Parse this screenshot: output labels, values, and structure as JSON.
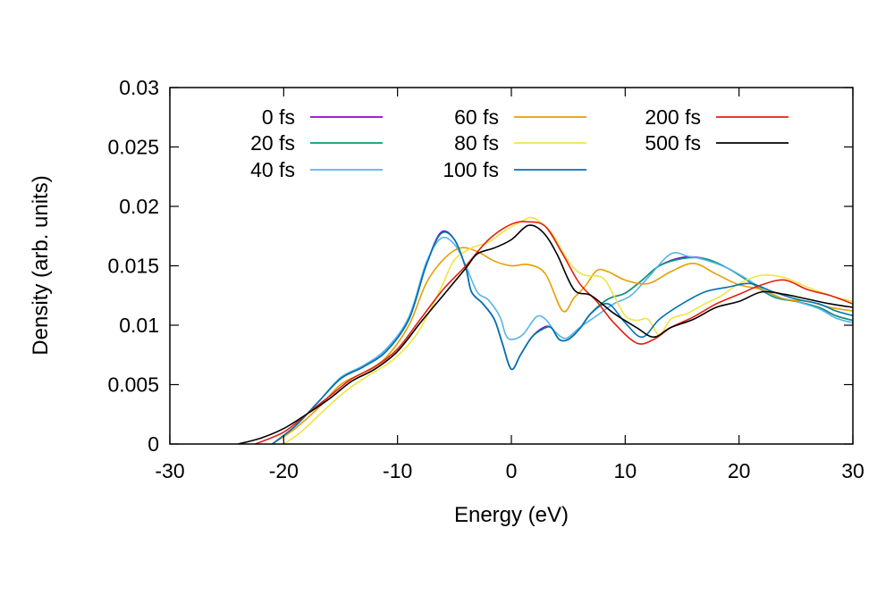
{
  "chart_data": {
    "type": "line",
    "title": "",
    "xlabel": "Energy (eV)",
    "ylabel": "Density (arb. units)",
    "xlim": [
      -30,
      30
    ],
    "ylim": [
      0,
      0.03
    ],
    "x_ticks": [
      -30,
      -20,
      -10,
      0,
      10,
      20,
      30
    ],
    "x_tick_labels": [
      "-30",
      "-20",
      "-10",
      "0",
      "10",
      "20",
      "30"
    ],
    "y_ticks": [
      0,
      0.005,
      0.01,
      0.015,
      0.02,
      0.025,
      0.03
    ],
    "y_tick_labels": [
      "0",
      "0.005",
      "0.01",
      "0.015",
      "0.02",
      "0.025",
      "0.03"
    ],
    "grid": false,
    "legend_position": "top",
    "series": [
      {
        "name": "0 fs",
        "color": "#9400d3",
        "points": [
          [
            -21,
            0
          ],
          [
            -19,
            0.0015
          ],
          [
            -17,
            0.0035
          ],
          [
            -15,
            0.0055
          ],
          [
            -13,
            0.0065
          ],
          [
            -11,
            0.0078
          ],
          [
            -9,
            0.0105
          ],
          [
            -7.5,
            0.015
          ],
          [
            -6.2,
            0.0178
          ],
          [
            -5,
            0.0172
          ],
          [
            -4,
            0.0148
          ],
          [
            -3.5,
            0.0128
          ],
          [
            -2.5,
            0.0118
          ],
          [
            -1.5,
            0.0105
          ],
          [
            -0.8,
            0.0085
          ],
          [
            0,
            0.0063
          ],
          [
            0.8,
            0.0075
          ],
          [
            1.8,
            0.009
          ],
          [
            2.8,
            0.0098
          ],
          [
            3.5,
            0.0098
          ],
          [
            4.2,
            0.0088
          ],
          [
            5,
            0.0088
          ],
          [
            6,
            0.0097
          ],
          [
            7,
            0.011
          ],
          [
            8.5,
            0.0122
          ],
          [
            10,
            0.0127
          ],
          [
            11.5,
            0.0138
          ],
          [
            13,
            0.015
          ],
          [
            15,
            0.0157
          ],
          [
            17,
            0.0156
          ],
          [
            19,
            0.0148
          ],
          [
            21,
            0.0136
          ],
          [
            23,
            0.0124
          ],
          [
            25,
            0.012
          ],
          [
            27,
            0.0115
          ],
          [
            28.5,
            0.0108
          ],
          [
            30,
            0.0104
          ]
        ]
      },
      {
        "name": "20 fs",
        "color": "#009e73",
        "points": [
          [
            -21,
            0
          ],
          [
            -19,
            0.0015
          ],
          [
            -17,
            0.0035
          ],
          [
            -15,
            0.0055
          ],
          [
            -13,
            0.0065
          ],
          [
            -11,
            0.0078
          ],
          [
            -9,
            0.0105
          ],
          [
            -7.5,
            0.015
          ],
          [
            -6.2,
            0.0177
          ],
          [
            -5,
            0.0172
          ],
          [
            -4,
            0.0148
          ],
          [
            -3.5,
            0.0128
          ],
          [
            -2.5,
            0.0118
          ],
          [
            -1.5,
            0.0105
          ],
          [
            -0.8,
            0.0085
          ],
          [
            0,
            0.0063
          ],
          [
            0.8,
            0.0075
          ],
          [
            1.8,
            0.009
          ],
          [
            2.8,
            0.0097
          ],
          [
            3.5,
            0.0098
          ],
          [
            4.2,
            0.0088
          ],
          [
            5,
            0.0088
          ],
          [
            6,
            0.0097
          ],
          [
            7,
            0.011
          ],
          [
            8.5,
            0.0122
          ],
          [
            10,
            0.0127
          ],
          [
            11.5,
            0.0138
          ],
          [
            13,
            0.015
          ],
          [
            15,
            0.0156
          ],
          [
            17,
            0.0156
          ],
          [
            19,
            0.0148
          ],
          [
            21,
            0.0136
          ],
          [
            23,
            0.0124
          ],
          [
            25,
            0.012
          ],
          [
            27,
            0.0115
          ],
          [
            28.5,
            0.0108
          ],
          [
            30,
            0.0104
          ]
        ]
      },
      {
        "name": "40 fs",
        "color": "#56b4e9",
        "points": [
          [
            -21,
            0
          ],
          [
            -19,
            0.0015
          ],
          [
            -17,
            0.0035
          ],
          [
            -15,
            0.0056
          ],
          [
            -13,
            0.0066
          ],
          [
            -11,
            0.008
          ],
          [
            -9,
            0.0107
          ],
          [
            -7.5,
            0.0152
          ],
          [
            -6.2,
            0.0173
          ],
          [
            -5,
            0.0168
          ],
          [
            -4,
            0.015
          ],
          [
            -3,
            0.0128
          ],
          [
            -2,
            0.0121
          ],
          [
            -1,
            0.0107
          ],
          [
            -0.5,
            0.0092
          ],
          [
            0,
            0.0088
          ],
          [
            1,
            0.0092
          ],
          [
            2.2,
            0.0107
          ],
          [
            3,
            0.0105
          ],
          [
            3.8,
            0.0095
          ],
          [
            4.8,
            0.0089
          ],
          [
            6,
            0.0098
          ],
          [
            7.5,
            0.0108
          ],
          [
            9,
            0.0118
          ],
          [
            10.5,
            0.0125
          ],
          [
            12,
            0.014
          ],
          [
            14,
            0.016
          ],
          [
            15.5,
            0.0158
          ],
          [
            17,
            0.0155
          ],
          [
            19,
            0.0148
          ],
          [
            21,
            0.0137
          ],
          [
            23,
            0.0125
          ],
          [
            25,
            0.012
          ],
          [
            27,
            0.0114
          ],
          [
            28.5,
            0.0106
          ],
          [
            30,
            0.0102
          ]
        ]
      },
      {
        "name": "60 fs",
        "color": "#e69f00",
        "points": [
          [
            -21,
            0
          ],
          [
            -19,
            0.0013
          ],
          [
            -17,
            0.003
          ],
          [
            -15,
            0.005
          ],
          [
            -13,
            0.006
          ],
          [
            -11,
            0.0073
          ],
          [
            -9,
            0.01
          ],
          [
            -7.5,
            0.0135
          ],
          [
            -6,
            0.0155
          ],
          [
            -4.5,
            0.0165
          ],
          [
            -3,
            0.0162
          ],
          [
            -1.5,
            0.0154
          ],
          [
            0,
            0.015
          ],
          [
            1.5,
            0.0151
          ],
          [
            3,
            0.0143
          ],
          [
            4.5,
            0.0112
          ],
          [
            5.5,
            0.0123
          ],
          [
            6.5,
            0.0133
          ],
          [
            7.5,
            0.0146
          ],
          [
            8.5,
            0.0145
          ],
          [
            10,
            0.0138
          ],
          [
            12,
            0.0135
          ],
          [
            14,
            0.0145
          ],
          [
            16,
            0.0152
          ],
          [
            18,
            0.0143
          ],
          [
            20,
            0.0134
          ],
          [
            22,
            0.013
          ],
          [
            24,
            0.0122
          ],
          [
            26,
            0.012
          ],
          [
            28,
            0.0115
          ],
          [
            30,
            0.0112
          ]
        ]
      },
      {
        "name": "80 fs",
        "color": "#f0e442",
        "points": [
          [
            -20,
            0
          ],
          [
            -18.5,
            0.001
          ],
          [
            -16.5,
            0.0028
          ],
          [
            -14.5,
            0.0045
          ],
          [
            -12.5,
            0.0058
          ],
          [
            -10.5,
            0.007
          ],
          [
            -8.5,
            0.009
          ],
          [
            -7,
            0.0115
          ],
          [
            -6,
            0.0135
          ],
          [
            -5,
            0.0155
          ],
          [
            -3.5,
            0.0165
          ],
          [
            -2,
            0.017
          ],
          [
            -0.5,
            0.018
          ],
          [
            1,
            0.0188
          ],
          [
            2,
            0.019
          ],
          [
            3.5,
            0.0178
          ],
          [
            4.5,
            0.0162
          ],
          [
            5.5,
            0.0148
          ],
          [
            6.5,
            0.0142
          ],
          [
            8,
            0.014
          ],
          [
            9,
            0.0125
          ],
          [
            10,
            0.0108
          ],
          [
            11,
            0.0104
          ],
          [
            12,
            0.0105
          ],
          [
            13,
            0.0092
          ],
          [
            14,
            0.0105
          ],
          [
            15.5,
            0.011
          ],
          [
            17,
            0.0118
          ],
          [
            18.5,
            0.0125
          ],
          [
            20,
            0.0135
          ],
          [
            22,
            0.0142
          ],
          [
            24,
            0.014
          ],
          [
            26,
            0.0132
          ],
          [
            28,
            0.0125
          ],
          [
            30,
            0.012
          ]
        ]
      },
      {
        "name": "100 fs",
        "color": "#0072b2",
        "points": [
          [
            -21,
            0
          ],
          [
            -19,
            0.0015
          ],
          [
            -17,
            0.0035
          ],
          [
            -15,
            0.0055
          ],
          [
            -13,
            0.0065
          ],
          [
            -11,
            0.0078
          ],
          [
            -9,
            0.0105
          ],
          [
            -7.5,
            0.015
          ],
          [
            -6.2,
            0.0177
          ],
          [
            -5,
            0.0172
          ],
          [
            -4,
            0.0148
          ],
          [
            -3.5,
            0.0128
          ],
          [
            -2.5,
            0.0118
          ],
          [
            -1.5,
            0.0105
          ],
          [
            -0.8,
            0.0085
          ],
          [
            0,
            0.0063
          ],
          [
            0.8,
            0.0075
          ],
          [
            1.8,
            0.009
          ],
          [
            2.8,
            0.0097
          ],
          [
            3.5,
            0.0098
          ],
          [
            4.2,
            0.0088
          ],
          [
            5,
            0.0088
          ],
          [
            6,
            0.0097
          ],
          [
            7,
            0.011
          ],
          [
            8.5,
            0.0118
          ],
          [
            10,
            0.0102
          ],
          [
            11.5,
            0.009
          ],
          [
            13,
            0.0105
          ],
          [
            15,
            0.0118
          ],
          [
            17,
            0.0128
          ],
          [
            19,
            0.0132
          ],
          [
            21,
            0.0135
          ],
          [
            23,
            0.0128
          ],
          [
            25,
            0.0122
          ],
          [
            27,
            0.0118
          ],
          [
            28.5,
            0.0112
          ],
          [
            30,
            0.0108
          ]
        ]
      },
      {
        "name": "200 fs",
        "color": "#e51e10",
        "points": [
          [
            -22.5,
            0
          ],
          [
            -20,
            0.001
          ],
          [
            -18,
            0.0025
          ],
          [
            -16,
            0.004
          ],
          [
            -14,
            0.0055
          ],
          [
            -12,
            0.0065
          ],
          [
            -10,
            0.008
          ],
          [
            -8,
            0.0105
          ],
          [
            -6,
            0.013
          ],
          [
            -4,
            0.015
          ],
          [
            -2,
            0.0172
          ],
          [
            0,
            0.0185
          ],
          [
            1.5,
            0.0187
          ],
          [
            3,
            0.0183
          ],
          [
            4.5,
            0.016
          ],
          [
            6,
            0.0135
          ],
          [
            7.5,
            0.012
          ],
          [
            9,
            0.0102
          ],
          [
            11,
            0.0085
          ],
          [
            12.5,
            0.0088
          ],
          [
            14,
            0.0098
          ],
          [
            16,
            0.0107
          ],
          [
            18,
            0.0118
          ],
          [
            20,
            0.0126
          ],
          [
            22,
            0.0134
          ],
          [
            24,
            0.0138
          ],
          [
            26,
            0.013
          ],
          [
            28,
            0.0125
          ],
          [
            30,
            0.0118
          ]
        ]
      },
      {
        "name": "500 fs",
        "color": "#000000",
        "points": [
          [
            -24,
            0
          ],
          [
            -22,
            0.0005
          ],
          [
            -20,
            0.0013
          ],
          [
            -18,
            0.0025
          ],
          [
            -16,
            0.0038
          ],
          [
            -14,
            0.0053
          ],
          [
            -12,
            0.0063
          ],
          [
            -10,
            0.0078
          ],
          [
            -8,
            0.0102
          ],
          [
            -6,
            0.0125
          ],
          [
            -4,
            0.0148
          ],
          [
            -3,
            0.016
          ],
          [
            -1.5,
            0.0165
          ],
          [
            0,
            0.0172
          ],
          [
            1.5,
            0.0184
          ],
          [
            2.8,
            0.0178
          ],
          [
            4,
            0.016
          ],
          [
            5.5,
            0.013
          ],
          [
            7,
            0.0125
          ],
          [
            9,
            0.011
          ],
          [
            11,
            0.0098
          ],
          [
            12.5,
            0.009
          ],
          [
            14,
            0.0098
          ],
          [
            16,
            0.0105
          ],
          [
            18,
            0.0115
          ],
          [
            20,
            0.012
          ],
          [
            22,
            0.0128
          ],
          [
            24,
            0.0126
          ],
          [
            26,
            0.0122
          ],
          [
            28,
            0.0118
          ],
          [
            30,
            0.0115
          ]
        ]
      }
    ]
  }
}
